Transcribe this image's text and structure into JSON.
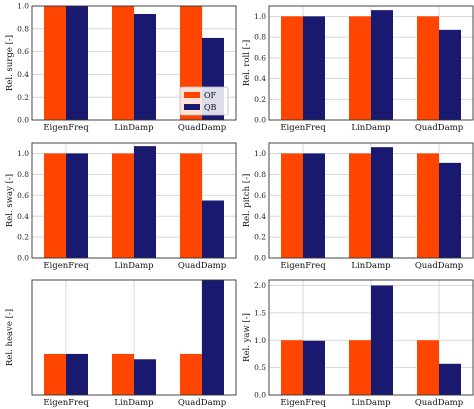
{
  "colors": {
    "OF": "#ff4500",
    "QB": "#191970"
  },
  "legend": {
    "placement": "center-right",
    "entries": [
      "OF",
      "QB"
    ]
  },
  "chart_data": [
    {
      "type": "bar",
      "ylabel": "Rel. surge [-]",
      "categories": [
        "EigenFreq",
        "LinDamp",
        "QuadDamp"
      ],
      "series": [
        {
          "name": "OF",
          "values": [
            1.0,
            1.0,
            1.0
          ]
        },
        {
          "name": "QB",
          "values": [
            1.0,
            0.93,
            0.72
          ]
        }
      ],
      "ylim": [
        0,
        1.0
      ],
      "yticks": [
        "0.0",
        "0.2",
        "0.4",
        "0.6",
        "0.8",
        "1.0"
      ],
      "grid": true,
      "legend": true
    },
    {
      "type": "bar",
      "ylabel": "Rel. roll [-]",
      "categories": [
        "EigenFreq",
        "LinDamp",
        "QuadDamp"
      ],
      "series": [
        {
          "name": "OF",
          "values": [
            1.0,
            1.0,
            1.0
          ]
        },
        {
          "name": "QB",
          "values": [
            1.0,
            1.06,
            0.87
          ]
        }
      ],
      "ylim": [
        0,
        1.1
      ],
      "yticks": [
        "0.0",
        "0.2",
        "0.4",
        "0.6",
        "0.8",
        "1.0"
      ],
      "grid": true,
      "legend": false
    },
    {
      "type": "bar",
      "ylabel": "Rel. sway [-]",
      "categories": [
        "EigenFreq",
        "LinDamp",
        "QuadDamp"
      ],
      "series": [
        {
          "name": "OF",
          "values": [
            1.0,
            1.0,
            1.0
          ]
        },
        {
          "name": "QB",
          "values": [
            1.0,
            1.07,
            0.55
          ]
        }
      ],
      "ylim": [
        0,
        1.1
      ],
      "yticks": [
        "0.0",
        "0.2",
        "0.4",
        "0.6",
        "0.8",
        "1.0"
      ],
      "grid": true,
      "legend": false
    },
    {
      "type": "bar",
      "ylabel": "Rel. pitch [-]",
      "categories": [
        "EigenFreq",
        "LinDamp",
        "QuadDamp"
      ],
      "series": [
        {
          "name": "OF",
          "values": [
            1.0,
            1.0,
            1.0
          ]
        },
        {
          "name": "QB",
          "values": [
            1.0,
            1.06,
            0.91
          ]
        }
      ],
      "ylim": [
        0,
        1.1
      ],
      "yticks": [
        "0.0",
        "0.2",
        "0.4",
        "0.6",
        "0.8",
        "1.0"
      ],
      "grid": true,
      "legend": false
    },
    {
      "type": "bar",
      "ylabel": "Rel. heave [-]",
      "categories": [
        "EigenFreq",
        "LinDamp",
        "QuadDamp"
      ],
      "series": [
        {
          "name": "OF",
          "values": [
            1.0,
            1.0,
            1.0
          ]
        },
        {
          "name": "QB",
          "values": [
            1.0,
            0.87,
            2.8
          ]
        }
      ],
      "ylim": [
        0,
        2.8
      ],
      "yticks": [],
      "grid": true,
      "legend": false
    },
    {
      "type": "bar",
      "ylabel": "Rel. yaw [-]",
      "categories": [
        "EigenFreq",
        "LinDamp",
        "QuadDamp"
      ],
      "series": [
        {
          "name": "OF",
          "values": [
            1.0,
            1.0,
            1.0
          ]
        },
        {
          "name": "QB",
          "values": [
            0.99,
            2.0,
            0.57
          ]
        }
      ],
      "ylim": [
        0,
        2.1
      ],
      "yticks": [
        "0.0",
        "0.5",
        "1.0",
        "1.5",
        "2.0"
      ],
      "grid": true,
      "legend": false
    }
  ]
}
